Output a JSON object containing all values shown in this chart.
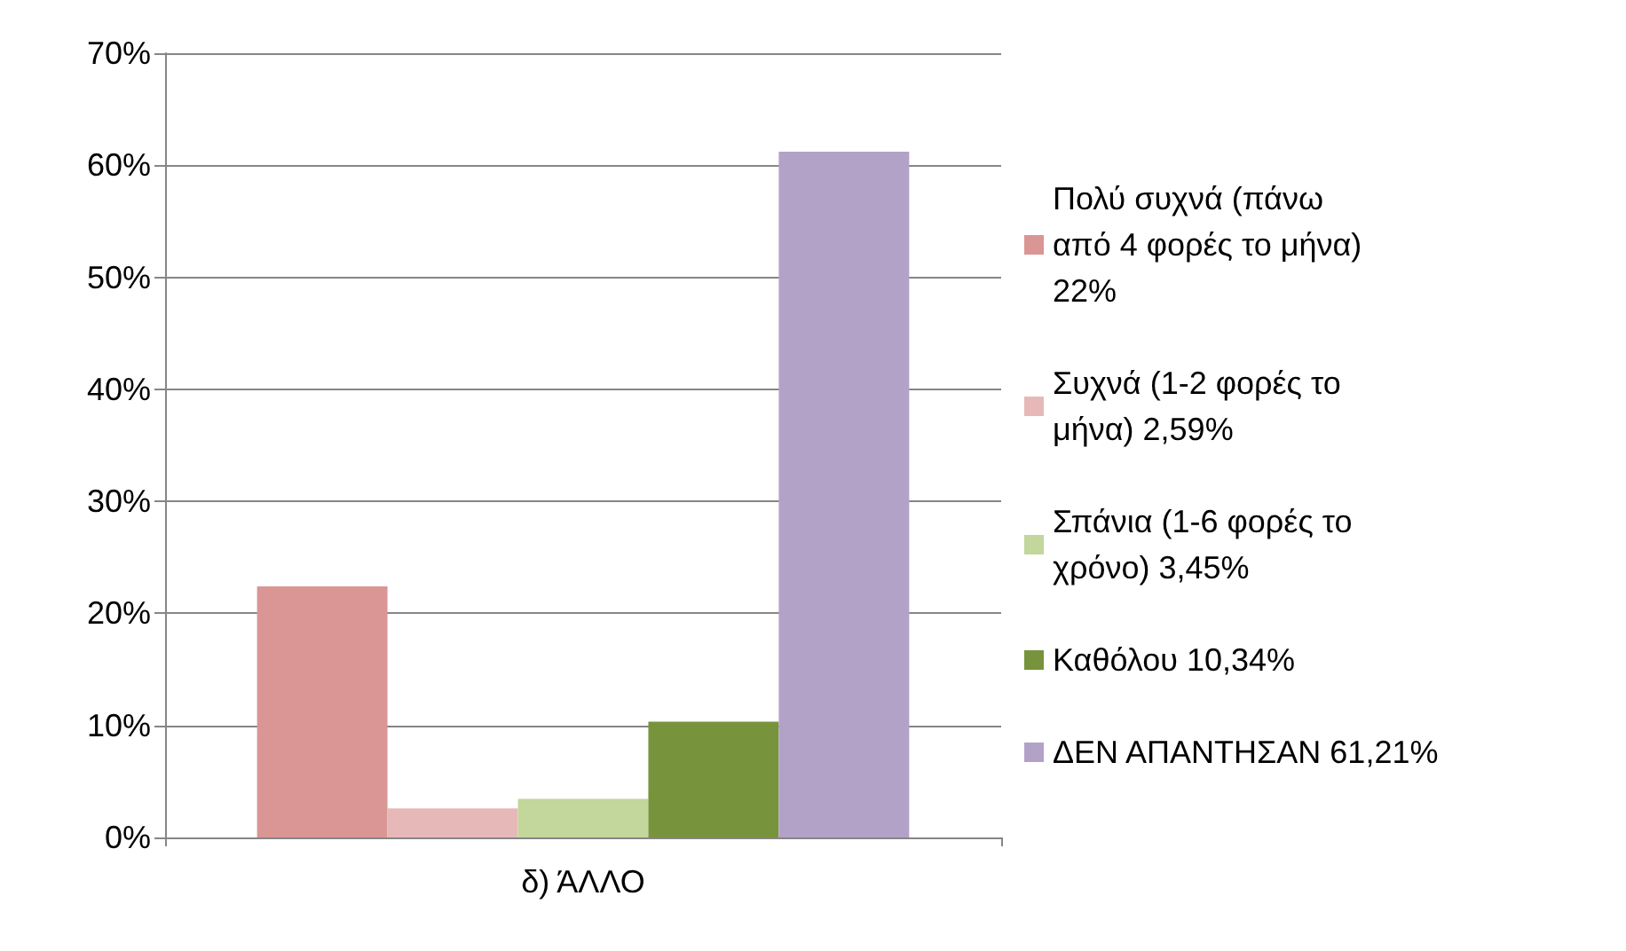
{
  "chart_data": {
    "type": "bar",
    "categories": [
      "δ) ΆΛΛΟ"
    ],
    "series": [
      {
        "name": "Πολύ συχνά (πάνω  από 4 φορές το μήνα) 22%",
        "color": "#d99694",
        "values": [
          22.4
        ]
      },
      {
        "name": "Συχνά (1-2 φορές το μήνα) 2,59%",
        "color": "#e6b9b8",
        "values": [
          2.59
        ]
      },
      {
        "name": "Σπάνια (1-6 φορές το χρόνο) 3,45%",
        "color": "#c3d69b",
        "values": [
          3.45
        ]
      },
      {
        "name": "Καθόλου 10,34%",
        "color": "#77933c",
        "values": [
          10.34
        ]
      },
      {
        "name": "ΔΕΝ ΑΠΑΝΤΗΣΑΝ 61,21%",
        "color": "#b3a2c7",
        "values": [
          61.21
        ]
      }
    ],
    "ylim": [
      0,
      70
    ],
    "yticks": [
      {
        "value": 0,
        "label": "0%"
      },
      {
        "value": 10,
        "label": "10%"
      },
      {
        "value": 20,
        "label": "20%"
      },
      {
        "value": 30,
        "label": "30%"
      },
      {
        "value": 40,
        "label": "40%"
      },
      {
        "value": 50,
        "label": "50%"
      },
      {
        "value": 60,
        "label": "60%"
      },
      {
        "value": 70,
        "label": "70%"
      }
    ],
    "grid": "y",
    "legend": "right"
  }
}
